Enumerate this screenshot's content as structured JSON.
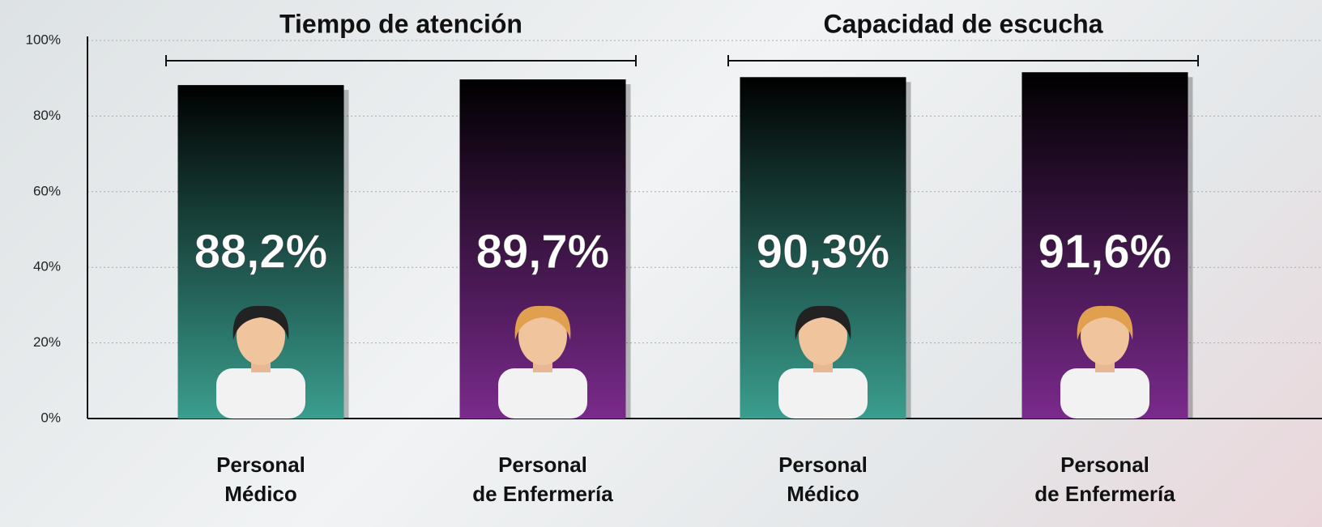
{
  "chart_data": {
    "type": "bar",
    "group_labels": [
      "Tiempo de atención",
      "Capacidad de escucha"
    ],
    "categories": [
      "Personal\nMédico",
      "Personal\nde Enfermería",
      "Personal\nMédico",
      "Personal\nde Enfermería"
    ],
    "values": [
      88.2,
      89.7,
      90.3,
      91.6
    ],
    "value_labels": [
      "88,2%",
      "89,7%",
      "90,3%",
      "91,6%"
    ],
    "colors": [
      "#3a9e8e",
      "#7a2a8c",
      "#3a9e8e",
      "#7a2a8c"
    ],
    "ylim": [
      0,
      100
    ],
    "yticks": [
      {
        "value": 0,
        "label": "0%"
      },
      {
        "value": 20,
        "label": "20%"
      },
      {
        "value": 40,
        "label": "40%"
      },
      {
        "value": 60,
        "label": "60%"
      },
      {
        "value": 80,
        "label": "80%"
      },
      {
        "value": 100,
        "label": "100%"
      }
    ],
    "grid": true
  }
}
